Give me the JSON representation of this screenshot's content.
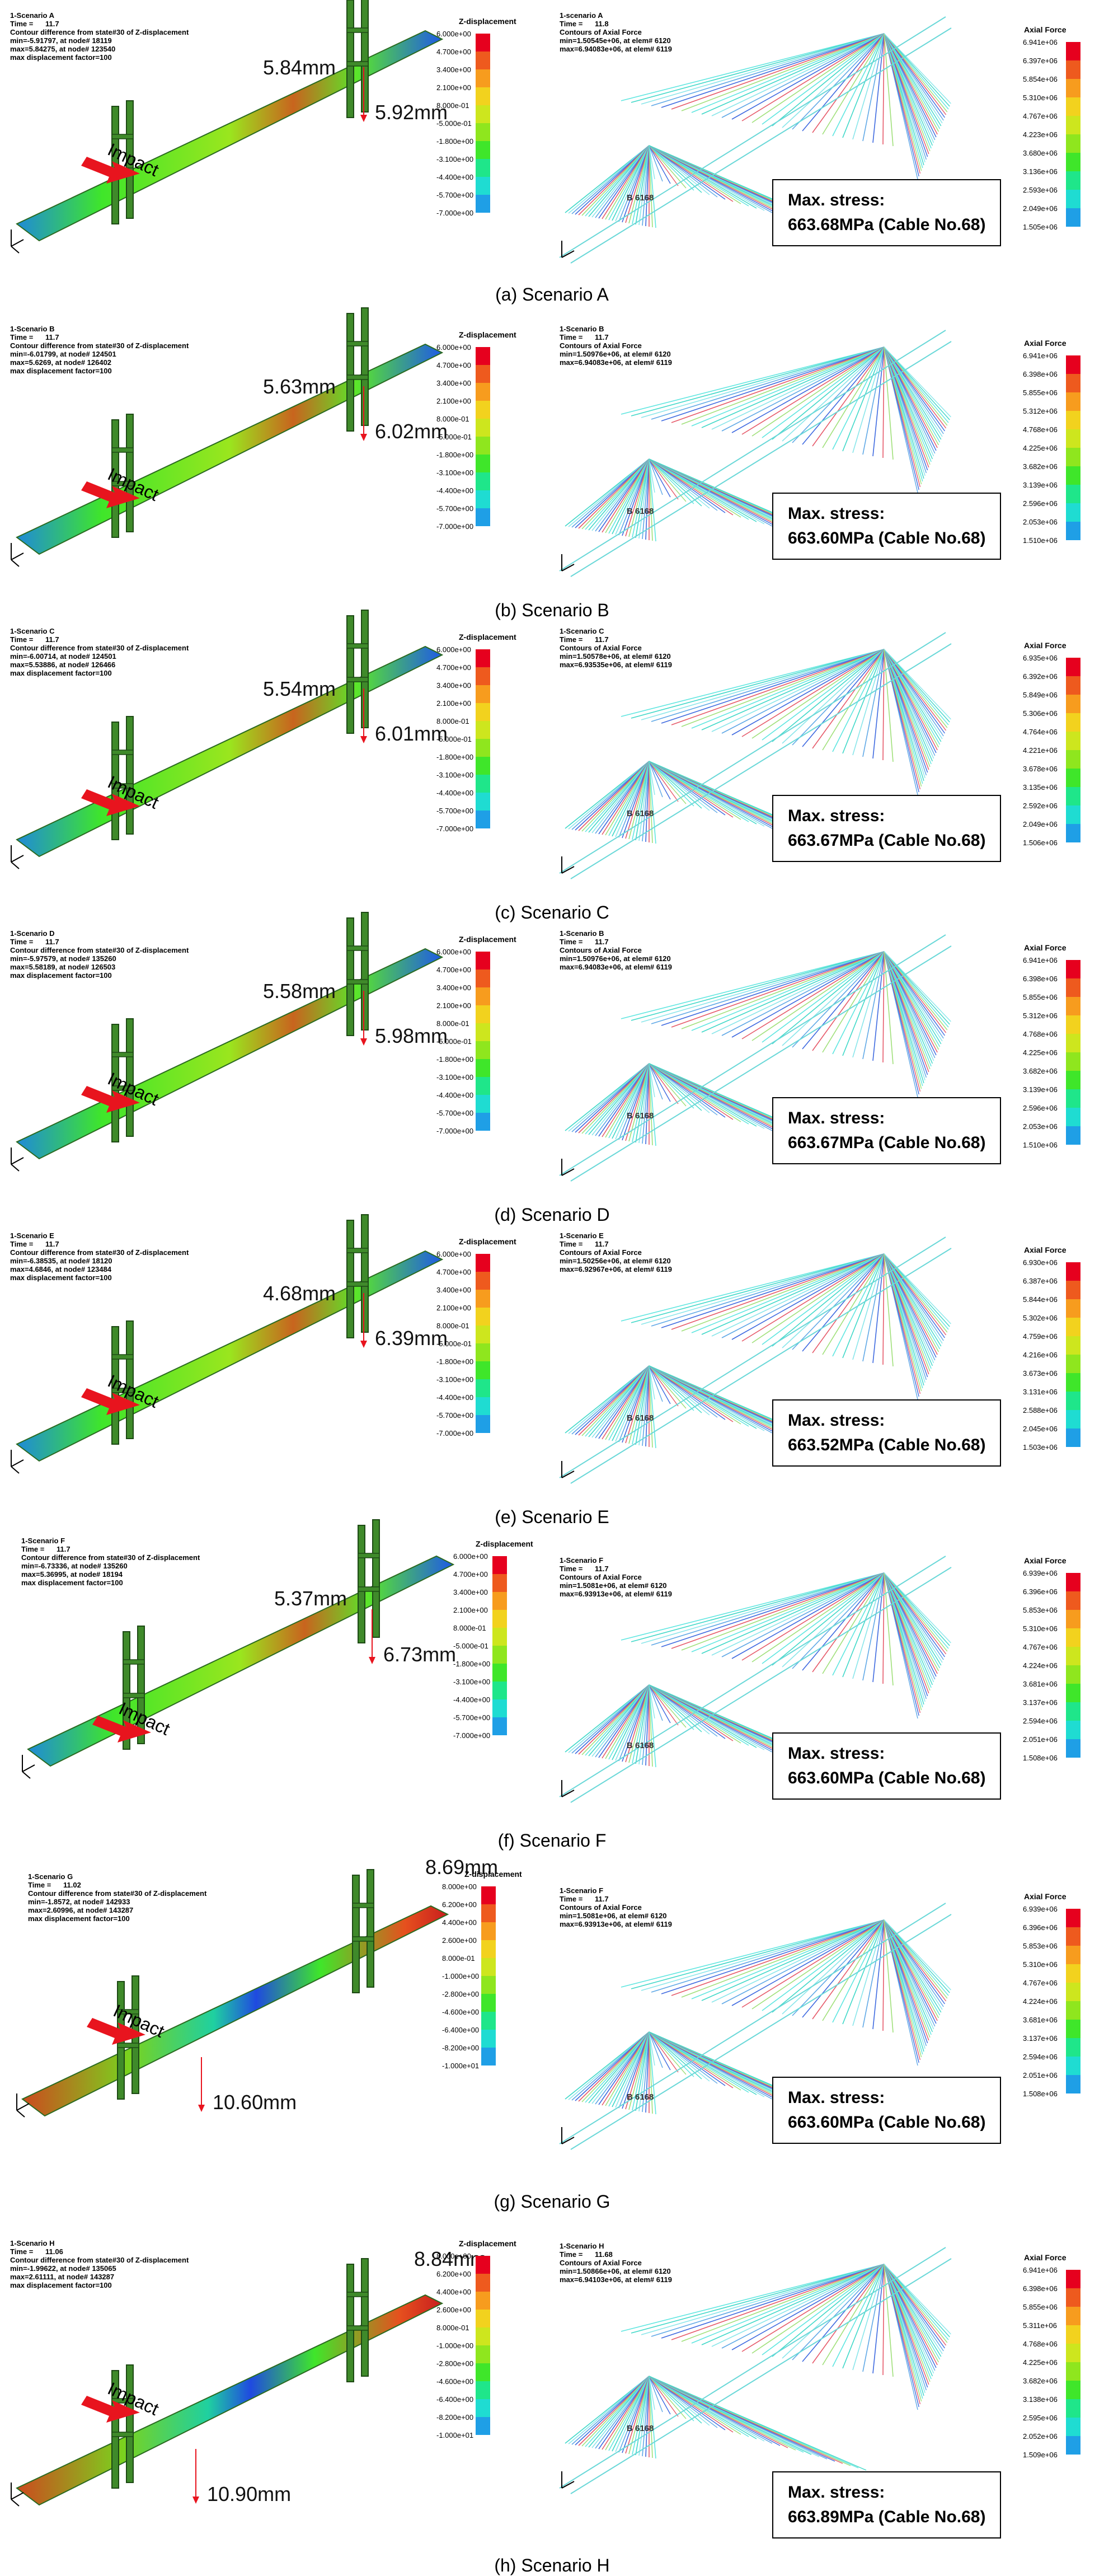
{
  "zbar_colors": [
    "#e6001e",
    "#ee5a1e",
    "#f79c1e",
    "#f2d21e",
    "#cde61e",
    "#8fe61e",
    "#3fe62a",
    "#1fe68a",
    "#1fdcd2",
    "#1f9fe6",
    "#1f5ae6",
    "#1f22e0"
  ],
  "abar_colors": [
    "#e6001e",
    "#ee5a1e",
    "#f79c1e",
    "#f2d21e",
    "#cde61e",
    "#8fe61e",
    "#3fe62a",
    "#1fe68a",
    "#1fdcd2",
    "#1f9fe6",
    "#1f5ae6",
    "#1f22e0"
  ],
  "panels": [
    {
      "id": "a",
      "left": {
        "title": "1-Scenario A",
        "time": "Time =      11.7",
        "l1": "Contour difference from state#30 of Z-displacement",
        "l2": "min=-5.91797, at node# 18119",
        "l3": "max=5.84275, at node# 123540",
        "l4": "max displacement factor=100"
      },
      "disp1": "5.84mm",
      "disp2": "5.92mm",
      "impact": "Impact",
      "zbar_title": "Z-displacement",
      "zticks": [
        "6.000e+00",
        "4.700e+00",
        "3.400e+00",
        "2.100e+00",
        "8.000e-01",
        "-5.000e-01",
        "-1.800e+00",
        "-3.100e+00",
        "-4.400e+00",
        "-5.700e+00",
        "-7.000e+00"
      ],
      "right": {
        "title": "1-scenario A",
        "time": "Time =      11.8",
        "l1": "Contours of Axial Force",
        "l2": "min=1.50545e+06, at elem# 6120",
        "l3": "max=6.94083e+06, at elem# 6119"
      },
      "abar_title": "Axial Force",
      "aticks": [
        "6.941e+06",
        "6.397e+06",
        "5.854e+06",
        "5.310e+06",
        "4.767e+06",
        "4.223e+06",
        "3.680e+06",
        "3.136e+06",
        "2.593e+06",
        "2.049e+06",
        "1.505e+06"
      ],
      "belem": "B 6168",
      "stress1": "Max. stress:",
      "stress2": "663.68MPa (Cable No.68)",
      "caption": "(a) Scenario A"
    },
    {
      "id": "b",
      "left": {
        "title": "1-Scenario B",
        "time": "Time =      11.7",
        "l1": "Contour difference from state#30 of Z-displacement",
        "l2": "min=-6.01799, at node# 124501",
        "l3": "max=5.6269, at node# 126402",
        "l4": "max displacement factor=100"
      },
      "disp1": "5.63mm",
      "disp2": "6.02mm",
      "impact": "Impact",
      "zbar_title": "Z-displacement",
      "zticks": [
        "6.000e+00",
        "4.700e+00",
        "3.400e+00",
        "2.100e+00",
        "8.000e-01",
        "-5.000e-01",
        "-1.800e+00",
        "-3.100e+00",
        "-4.400e+00",
        "-5.700e+00",
        "-7.000e+00"
      ],
      "right": {
        "title": "1-Scenario B",
        "time": "Time =      11.7",
        "l1": "Contours of Axial Force",
        "l2": "min=1.50976e+06, at elem# 6120",
        "l3": "max=6.94083e+06, at elem# 6119"
      },
      "abar_title": "Axial Force",
      "aticks": [
        "6.941e+06",
        "6.398e+06",
        "5.855e+06",
        "5.312e+06",
        "4.768e+06",
        "4.225e+06",
        "3.682e+06",
        "3.139e+06",
        "2.596e+06",
        "2.053e+06",
        "1.510e+06"
      ],
      "belem": "B 6168",
      "stress1": "Max. stress:",
      "stress2": "663.60MPa (Cable No.68)",
      "caption": "(b) Scenario B"
    },
    {
      "id": "c",
      "left": {
        "title": "1-Scenario C",
        "time": "Time =      11.7",
        "l1": "Contour difference from state#30 of Z-displacement",
        "l2": "min=-6.00714, at node# 124501",
        "l3": "max=5.53886, at node# 126466",
        "l4": "max displacement factor=100"
      },
      "disp1": "5.54mm",
      "disp2": "6.01mm",
      "impact": "Impact",
      "zbar_title": "Z-displacement",
      "zticks": [
        "6.000e+00",
        "4.700e+00",
        "3.400e+00",
        "2.100e+00",
        "8.000e-01",
        "-5.000e-01",
        "-1.800e+00",
        "-3.100e+00",
        "-4.400e+00",
        "-5.700e+00",
        "-7.000e+00"
      ],
      "right": {
        "title": "1-Scenario C",
        "time": "Time =      11.7",
        "l1": "Contours of Axial Force",
        "l2": "min=1.50578e+06, at elem# 6120",
        "l3": "max=6.93535e+06, at elem# 6119"
      },
      "abar_title": "Axial Force",
      "aticks": [
        "6.935e+06",
        "6.392e+06",
        "5.849e+06",
        "5.306e+06",
        "4.764e+06",
        "4.221e+06",
        "3.678e+06",
        "3.135e+06",
        "2.592e+06",
        "2.049e+06",
        "1.506e+06"
      ],
      "belem": "B 6168",
      "stress1": "Max. stress:",
      "stress2": "663.67MPa (Cable No.68)",
      "caption": "(c) Scenario C"
    },
    {
      "id": "d",
      "left": {
        "title": "1-Scenario D",
        "time": "Time =      11.7",
        "l1": "Contour difference from state#30 of Z-displacement",
        "l2": "min=-5.97579, at node# 135260",
        "l3": "max=5.58189, at node# 126503",
        "l4": "max displacement factor=100"
      },
      "disp1": "5.58mm",
      "disp2": "5.98mm",
      "impact": "Impact",
      "zbar_title": "Z-displacement",
      "zticks": [
        "6.000e+00",
        "4.700e+00",
        "3.400e+00",
        "2.100e+00",
        "8.000e-01",
        "-5.000e-01",
        "-1.800e+00",
        "-3.100e+00",
        "-4.400e+00",
        "-5.700e+00",
        "-7.000e+00"
      ],
      "right": {
        "title": "1-Scenario B",
        "time": "Time =      11.7",
        "l1": "Contours of Axial Force",
        "l2": "min=1.50976e+06, at elem# 6120",
        "l3": "max=6.94083e+06, at elem# 6119"
      },
      "abar_title": "Axial Force",
      "aticks": [
        "6.941e+06",
        "6.398e+06",
        "5.855e+06",
        "5.312e+06",
        "4.768e+06",
        "4.225e+06",
        "3.682e+06",
        "3.139e+06",
        "2.596e+06",
        "2.053e+06",
        "1.510e+06"
      ],
      "belem": "B 6168",
      "stress1": "Max. stress:",
      "stress2": "663.67MPa (Cable No.68)",
      "caption": "(d) Scenario D"
    },
    {
      "id": "e",
      "left": {
        "title": "1-Scenario E",
        "time": "Time =      11.7",
        "l1": "Contour difference from state#30 of Z-displacement",
        "l2": "min=-6.38535, at node# 18120",
        "l3": "max=4.6846, at node# 123484",
        "l4": "max displacement factor=100"
      },
      "disp1": "4.68mm",
      "disp2": "6.39mm",
      "impact": "Impact",
      "zbar_title": "Z-displacement",
      "zticks": [
        "6.000e+00",
        "4.700e+00",
        "3.400e+00",
        "2.100e+00",
        "8.000e-01",
        "-5.000e-01",
        "-1.800e+00",
        "-3.100e+00",
        "-4.400e+00",
        "-5.700e+00",
        "-7.000e+00"
      ],
      "right": {
        "title": "1-Scenario E",
        "time": "Time =      11.7",
        "l1": "Contours of Axial Force",
        "l2": "min=1.50256e+06, at elem# 6120",
        "l3": "max=6.92967e+06, at elem# 6119"
      },
      "abar_title": "Axial Force",
      "aticks": [
        "6.930e+06",
        "6.387e+06",
        "5.844e+06",
        "5.302e+06",
        "4.759e+06",
        "4.216e+06",
        "3.673e+06",
        "3.131e+06",
        "2.588e+06",
        "2.045e+06",
        "1.503e+06"
      ],
      "belem": "B 6168",
      "stress1": "Max. stress:",
      "stress2": "663.52MPa (Cable No.68)",
      "caption": "(e) Scenario E"
    },
    {
      "id": "f",
      "left": {
        "title": "1-Scenario F",
        "time": "Time =      11.7",
        "l1": "Contour difference from state#30 of Z-displacement",
        "l2": "min=-6.73336, at node# 135260",
        "l3": "max=5.36995, at node# 18194",
        "l4": "max displacement factor=100"
      },
      "disp1": "5.37mm",
      "disp2": "6.73mm",
      "impact": "Impact",
      "zbar_title": "Z-displacement",
      "zticks": [
        "6.000e+00",
        "4.700e+00",
        "3.400e+00",
        "2.100e+00",
        "8.000e-01",
        "-5.000e-01",
        "-1.800e+00",
        "-3.100e+00",
        "-4.400e+00",
        "-5.700e+00",
        "-7.000e+00"
      ],
      "right": {
        "title": "1-Scenario F",
        "time": "Time =      11.7",
        "l1": "Contours of Axial Force",
        "l2": "min=1.5081e+06, at elem# 6120",
        "l3": "max=6.93913e+06, at elem# 6119"
      },
      "abar_title": "Axial Force",
      "aticks": [
        "6.939e+06",
        "6.396e+06",
        "5.853e+06",
        "5.310e+06",
        "4.767e+06",
        "4.224e+06",
        "3.681e+06",
        "3.137e+06",
        "2.594e+06",
        "2.051e+06",
        "1.508e+06"
      ],
      "belem": "B 6168",
      "stress1": "Max. stress:",
      "stress2": "663.60MPa (Cable No.68)",
      "caption": "(f) Scenario F"
    },
    {
      "id": "g",
      "left": {
        "title": "1-Scenario G",
        "time": "Time =      11.02",
        "l1": "Contour difference from state#30 of Z-displacement",
        "l2": "min=-1.8572, at node# 142933",
        "l3": "max=2.60996, at node# 143287",
        "l4": "max displacement factor=100"
      },
      "disp1": "8.69mm",
      "disp2": "10.60mm",
      "impact": "Impact",
      "zbar_title": "Z-displacement",
      "zticks": [
        "8.000e+00",
        "6.200e+00",
        "4.400e+00",
        "2.600e+00",
        "8.000e-01",
        "-1.000e+00",
        "-2.800e+00",
        "-4.600e+00",
        "-6.400e+00",
        "-8.200e+00",
        "-1.000e+01"
      ],
      "right": {
        "title": "1-Scenario F",
        "time": "Time =      11.7",
        "l1": "Contours of Axial Force",
        "l2": "min=1.5081e+06, at elem# 6120",
        "l3": "max=6.93913e+06, at elem# 6119"
      },
      "abar_title": "Axial Force",
      "aticks": [
        "6.939e+06",
        "6.396e+06",
        "5.853e+06",
        "5.310e+06",
        "4.767e+06",
        "4.224e+06",
        "3.681e+06",
        "3.137e+06",
        "2.594e+06",
        "2.051e+06",
        "1.508e+06"
      ],
      "belem": "B 6168",
      "stress1": "Max. stress:",
      "stress2": "663.60MPa (Cable No.68)",
      "caption": "(g) Scenario G"
    },
    {
      "id": "h",
      "left": {
        "title": "1-Scenario H",
        "time": "Time =      11.06",
        "l1": "Contour difference from state#30 of Z-displacement",
        "l2": "min=-1.99622, at node# 135065",
        "l3": "max=2.61111, at node# 143287",
        "l4": "max displacement factor=100"
      },
      "disp1": "8.84mm",
      "disp2": "10.90mm",
      "impact": "Impact",
      "zbar_title": "Z-displacement",
      "zticks": [
        "8.000e+00",
        "6.200e+00",
        "4.400e+00",
        "2.600e+00",
        "8.000e-01",
        "-1.000e+00",
        "-2.800e+00",
        "-4.600e+00",
        "-6.400e+00",
        "-8.200e+00",
        "-1.000e+01"
      ],
      "right": {
        "title": "1-Scenario H",
        "time": "Time =      11.68",
        "l1": "Contours of Axial Force",
        "l2": "min=1.50866e+06, at elem# 6120",
        "l3": "max=6.94103e+06, at elem# 6119"
      },
      "abar_title": "Axial Force",
      "aticks": [
        "6.941e+06",
        "6.398e+06",
        "5.855e+06",
        "5.311e+06",
        "4.768e+06",
        "4.225e+06",
        "3.682e+06",
        "3.138e+06",
        "2.595e+06",
        "2.052e+06",
        "1.509e+06"
      ],
      "belem": "B 6168",
      "stress1": "Max. stress:",
      "stress2": "663.89MPa (Cable No.68)",
      "caption": "(h) Scenario H"
    }
  ]
}
